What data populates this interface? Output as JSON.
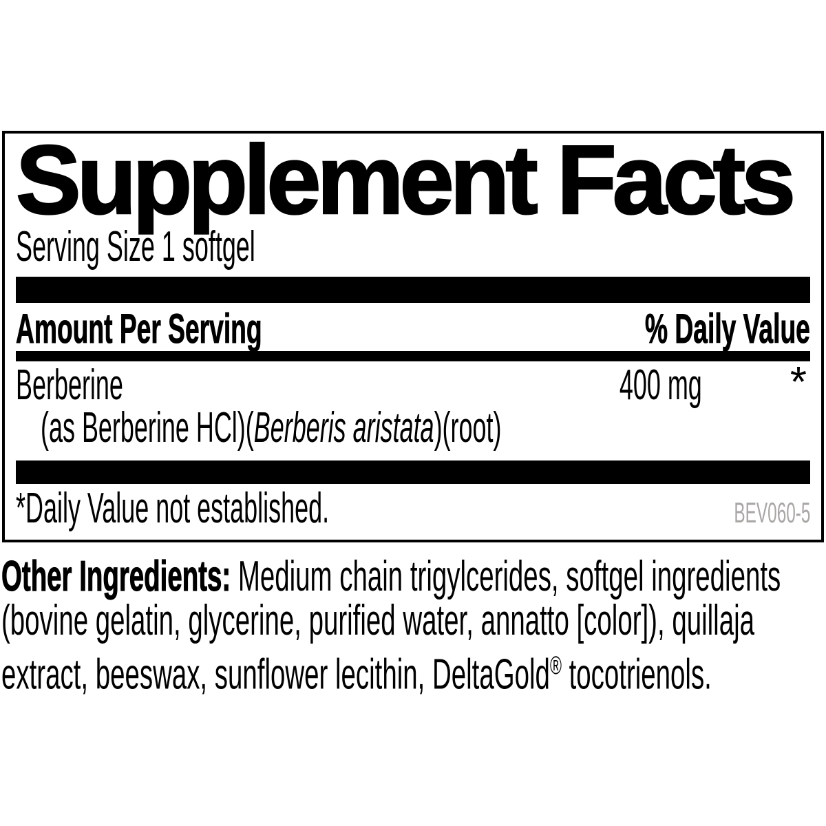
{
  "panel": {
    "title": "Supplement Facts",
    "serving_size": "Serving Size 1 softgel",
    "columns": {
      "amount_header": "Amount Per Serving",
      "daily_value_header": "% Daily Value"
    },
    "facts": [
      {
        "name": "Berberine",
        "amount": "400 mg",
        "daily_value": "*",
        "detail_prefix": "(as Berberine HCl)(",
        "detail_italic": "Berberis aristata",
        "detail_suffix": ")(root)"
      }
    ],
    "footnote": "*Daily Value not established.",
    "product_code": "BEV060-5"
  },
  "other_ingredients": {
    "label": "Other Ingredients:",
    "line1_rest": " Medium chain trigylcerides, softgel ingredients",
    "line2": "(bovine gelatin, glycerine, purified water, annatto [color]), quillaja",
    "line3_before": "extract, beeswax, sunflower lecithin, DeltaGold",
    "registered_mark": "®",
    "line3_after": " tocotrienols."
  },
  "colors": {
    "text": "#000000",
    "background": "#ffffff",
    "product_code_gray": "#a9a7a5"
  }
}
